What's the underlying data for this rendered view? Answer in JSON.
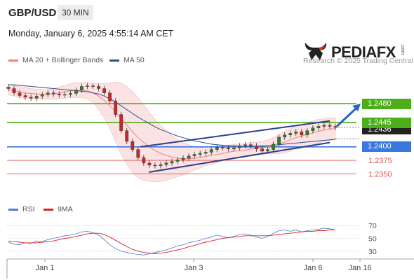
{
  "header": {
    "symbol": "GBP/USD",
    "timeframe": "30 MIN",
    "datetime": "Monday, January 6, 2025 4:55:14 AM CET"
  },
  "brand": {
    "name": "PEDIAFX",
    "registered": ".com",
    "watermark": "Research © 2025 Trading Central"
  },
  "legend": {
    "price": [
      {
        "label": "MA 20 + Bollinger Bands",
        "color": "#f08080"
      },
      {
        "label": "MA 50",
        "color": "#2b4d8c"
      }
    ],
    "rsi": [
      {
        "label": "RSI",
        "color": "#4a7fd4"
      },
      {
        "label": "9MA",
        "color": "#e02020"
      }
    ]
  },
  "colors": {
    "resistance": "#4caf1a",
    "pivot": "#3a78e0",
    "support": "#e05050",
    "channel": "#2b3f8c",
    "candle_up": "#2e7d32",
    "candle_down": "#c62828"
  },
  "chart_data": [
    {
      "type": "candlestick",
      "title": "",
      "x_ticks": [
        "Jan 1",
        "Jan 3",
        "Jan 6",
        "Jan 16"
      ],
      "ylim": [
        1.2305,
        1.2545
      ],
      "levels": [
        {
          "value": 1.248,
          "label": "1.2480",
          "kind": "resistance"
        },
        {
          "value": 1.2445,
          "label": "1.2445",
          "kind": "resistance"
        },
        {
          "value": 1.24,
          "label": "1.2400",
          "kind": "pivot"
        },
        {
          "value": 1.2375,
          "label": "1.2375",
          "kind": "support"
        },
        {
          "value": 1.235,
          "label": "1.2350",
          "kind": "support"
        }
      ],
      "last_price": {
        "label": "1.2436"
      },
      "close_series": [
        1.2508,
        1.25,
        1.2495,
        1.2492,
        1.249,
        1.2494,
        1.2497,
        1.25,
        1.2498,
        1.2496,
        1.2497,
        1.2499,
        1.2505,
        1.2512,
        1.2513,
        1.2512,
        1.2508,
        1.25,
        1.2485,
        1.246,
        1.243,
        1.241,
        1.2395,
        1.238,
        1.237,
        1.2366,
        1.2365,
        1.2367,
        1.237,
        1.2373,
        1.2376,
        1.2379,
        1.2383,
        1.2386,
        1.2388,
        1.239,
        1.2395,
        1.2399,
        1.2398,
        1.2396,
        1.2398,
        1.2402,
        1.2404,
        1.2402,
        1.2396,
        1.2392,
        1.2395,
        1.2405,
        1.2418,
        1.2422,
        1.2425,
        1.2428,
        1.2422,
        1.243,
        1.2435,
        1.2438,
        1.244,
        1.2438,
        1.2436
      ],
      "ma20_series": [
        1.2506,
        1.2504,
        1.2502,
        1.25,
        1.2499,
        1.2498,
        1.2497,
        1.2497,
        1.2498,
        1.25,
        1.2502,
        1.2504,
        1.2505,
        1.2505,
        1.2504,
        1.25,
        1.2494,
        1.2486,
        1.2476,
        1.2465,
        1.2452,
        1.244,
        1.2428,
        1.2417,
        1.2408,
        1.24,
        1.2393,
        1.2388,
        1.2384,
        1.2381,
        1.2379,
        1.2378,
        1.2378,
        1.2379,
        1.238,
        1.2382,
        1.2384,
        1.2386,
        1.2388,
        1.239,
        1.2392,
        1.2393,
        1.2394,
        1.2396,
        1.2397,
        1.2398,
        1.24,
        1.2402,
        1.2405,
        1.2409,
        1.2413,
        1.2417,
        1.242,
        1.2423,
        1.2426,
        1.2429,
        1.2431,
        1.2433,
        1.2434
      ],
      "ma50_series": [
        1.2515,
        1.2515,
        1.2514,
        1.2513,
        1.2512,
        1.2511,
        1.251,
        1.2509,
        1.2508,
        1.2507,
        1.2506,
        1.2505,
        1.2504,
        1.2503,
        1.2502,
        1.25,
        1.2498,
        1.2494,
        1.2489,
        1.2483,
        1.2476,
        1.2469,
        1.2462,
        1.2455,
        1.2449,
        1.2443,
        1.2437,
        1.2432,
        1.2428,
        1.2424,
        1.242,
        1.2417,
        1.2414,
        1.2411,
        1.2409,
        1.2407,
        1.2405,
        1.2404,
        1.2403,
        1.2402,
        1.2402,
        1.2401,
        1.2401,
        1.2401,
        1.2401,
        1.2402,
        1.2402,
        1.2403,
        1.2404,
        1.2405,
        1.2406,
        1.2407,
        1.2408,
        1.2409,
        1.241,
        1.2411,
        1.2412,
        1.2413,
        1.2414
      ],
      "bb_width": [
        0.001,
        0.001,
        0.001,
        0.001,
        0.0009,
        0.0009,
        0.0009,
        0.0009,
        0.001,
        0.0011,
        0.0012,
        0.0013,
        0.0014,
        0.0014,
        0.0015,
        0.0018,
        0.0024,
        0.0032,
        0.0042,
        0.0055,
        0.0066,
        0.0072,
        0.0075,
        0.0074,
        0.007,
        0.0064,
        0.0058,
        0.0052,
        0.0046,
        0.004,
        0.0034,
        0.003,
        0.0026,
        0.0022,
        0.0019,
        0.0017,
        0.0016,
        0.0015,
        0.0014,
        0.0013,
        0.0013,
        0.0012,
        0.0012,
        0.0012,
        0.0012,
        0.0012,
        0.0013,
        0.0015,
        0.0018,
        0.002,
        0.0021,
        0.0022,
        0.0022,
        0.0022,
        0.0022,
        0.0022,
        0.0021,
        0.0021,
        0.002
      ],
      "channel": {
        "upper": [
          1.24,
          1.2448
        ],
        "lower": [
          1.2353,
          1.2408
        ]
      }
    },
    {
      "type": "line",
      "title": "",
      "ylim": [
        20,
        80
      ],
      "y_ticks": [
        "70",
        "50",
        "30"
      ],
      "rsi_series": [
        44,
        41,
        40,
        43,
        42,
        46,
        45,
        48,
        50,
        52,
        54,
        55,
        57,
        60,
        61,
        59,
        55,
        48,
        40,
        34,
        30,
        28,
        26,
        25,
        24,
        26,
        28,
        30,
        32,
        35,
        38,
        40,
        43,
        45,
        47,
        50,
        52,
        55,
        53,
        51,
        53,
        56,
        57,
        55,
        52,
        50,
        53,
        58,
        62,
        63,
        61,
        63,
        60,
        62,
        63,
        64,
        66,
        65,
        63
      ],
      "ma9_series": [
        46,
        45,
        44,
        43,
        43,
        43,
        44,
        45,
        46,
        48,
        50,
        51,
        53,
        55,
        57,
        58,
        58,
        56,
        52,
        47,
        42,
        37,
        33,
        30,
        28,
        27,
        26,
        27,
        28,
        30,
        32,
        34,
        37,
        39,
        42,
        44,
        46,
        48,
        50,
        51,
        52,
        53,
        54,
        54,
        54,
        54,
        54,
        55,
        56,
        57,
        58,
        59,
        60,
        61,
        61,
        62,
        62,
        63,
        63
      ]
    }
  ]
}
